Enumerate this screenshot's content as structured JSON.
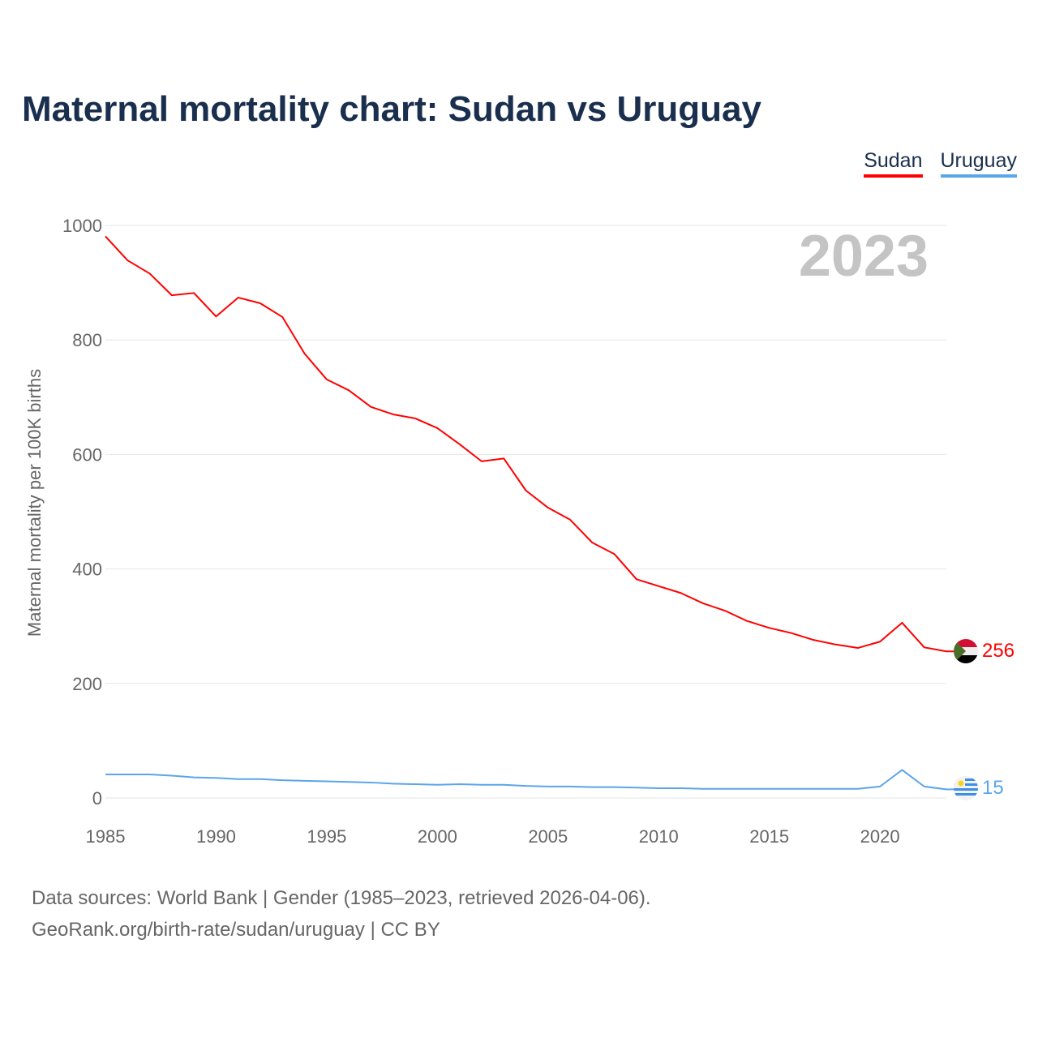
{
  "title": "Maternal mortality chart: Sudan vs Uruguay",
  "footer": {
    "line1": "Data sources: World Bank | Gender (1985–2023, retrieved 2026-04-06).",
    "line2": "GeoRank.org/birth-rate/sudan/uruguay | CC BY"
  },
  "chart_data": {
    "type": "line",
    "title": "Maternal mortality chart: Sudan vs Uruguay",
    "xlabel": "",
    "ylabel": "Maternal mortality per 100K births",
    "year_label": "2023",
    "xlim": [
      1985,
      2023
    ],
    "ylim": [
      0,
      1000
    ],
    "xticks": [
      "1985",
      "1990",
      "1995",
      "2000",
      "2005",
      "2010",
      "2015",
      "2020"
    ],
    "yticks": [
      "0",
      "200",
      "400",
      "600",
      "800",
      "1000"
    ],
    "grid": true,
    "legend_position": "top-right",
    "x": [
      1985,
      1986,
      1987,
      1988,
      1989,
      1990,
      1991,
      1992,
      1993,
      1994,
      1995,
      1996,
      1997,
      1998,
      1999,
      2000,
      2001,
      2002,
      2003,
      2004,
      2005,
      2006,
      2007,
      2008,
      2009,
      2010,
      2011,
      2012,
      2013,
      2014,
      2015,
      2016,
      2017,
      2018,
      2019,
      2020,
      2021,
      2022,
      2023
    ],
    "series": [
      {
        "name": "Sudan",
        "color": "#ff0000",
        "end_label": "256",
        "values": [
          981,
          939,
          916,
          878,
          882,
          841,
          874,
          864,
          840,
          776,
          731,
          712,
          683,
          670,
          663,
          646,
          618,
          588,
          593,
          537,
          507,
          486,
          446,
          426,
          382,
          370,
          358,
          340,
          327,
          309,
          297,
          288,
          276,
          268,
          262,
          273,
          306,
          263,
          256
        ]
      },
      {
        "name": "Uruguay",
        "color": "#5aa5ec",
        "end_label": "15",
        "values": [
          41,
          41,
          41,
          39,
          36,
          35,
          33,
          33,
          31,
          30,
          29,
          28,
          27,
          25,
          24,
          23,
          24,
          23,
          23,
          21,
          20,
          20,
          19,
          19,
          18,
          17,
          17,
          16,
          16,
          16,
          16,
          16,
          16,
          16,
          16,
          20,
          49,
          20,
          15
        ]
      }
    ]
  }
}
